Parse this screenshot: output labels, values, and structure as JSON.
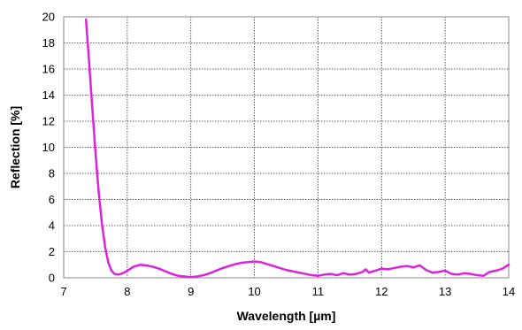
{
  "chart_data": {
    "type": "line",
    "title": "",
    "xlabel": "Wavelength [µm]",
    "ylabel": "Reflection [%]",
    "xlim": [
      7,
      14
    ],
    "ylim": [
      0,
      20
    ],
    "x_ticks": [
      "7",
      "8",
      "9",
      "10",
      "11",
      "12",
      "13",
      "14"
    ],
    "y_ticks": [
      "0",
      "2",
      "4",
      "6",
      "8",
      "10",
      "12",
      "14",
      "16",
      "18",
      "20"
    ],
    "grid": true,
    "legend": "none",
    "line_color": "#dd22dd",
    "series": [
      {
        "x": [
          7.35,
          7.4,
          7.45,
          7.5,
          7.55,
          7.6,
          7.65,
          7.7,
          7.75,
          7.8,
          7.85,
          7.9,
          7.95,
          8.0,
          8.1,
          8.2,
          8.3,
          8.4,
          8.5,
          8.6,
          8.7,
          8.8,
          8.9,
          9.0,
          9.1,
          9.2,
          9.3,
          9.4,
          9.5,
          9.6,
          9.7,
          9.8,
          9.9,
          10.0,
          10.1,
          10.2,
          10.3,
          10.4,
          10.5,
          10.6,
          10.7,
          10.8,
          10.9,
          11.0,
          11.1,
          11.2,
          11.3,
          11.4,
          11.5,
          11.6,
          11.7,
          11.75,
          11.8,
          11.9,
          12.0,
          12.1,
          12.2,
          12.3,
          12.4,
          12.5,
          12.6,
          12.7,
          12.8,
          12.9,
          13.0,
          13.1,
          13.2,
          13.3,
          13.4,
          13.5,
          13.6,
          13.7,
          13.8,
          13.9,
          14.0
        ],
        "y": [
          19.8,
          16.5,
          13.0,
          9.6,
          6.6,
          4.2,
          2.4,
          1.2,
          0.55,
          0.3,
          0.25,
          0.3,
          0.4,
          0.55,
          0.85,
          1.0,
          0.95,
          0.85,
          0.7,
          0.5,
          0.3,
          0.15,
          0.1,
          0.05,
          0.1,
          0.2,
          0.35,
          0.55,
          0.75,
          0.9,
          1.05,
          1.15,
          1.2,
          1.25,
          1.2,
          1.05,
          0.9,
          0.75,
          0.6,
          0.5,
          0.4,
          0.3,
          0.2,
          0.15,
          0.25,
          0.3,
          0.2,
          0.35,
          0.25,
          0.3,
          0.45,
          0.65,
          0.4,
          0.55,
          0.7,
          0.65,
          0.75,
          0.85,
          0.9,
          0.8,
          0.95,
          0.6,
          0.4,
          0.45,
          0.55,
          0.3,
          0.25,
          0.35,
          0.3,
          0.2,
          0.15,
          0.45,
          0.55,
          0.7,
          1.0
        ]
      }
    ]
  }
}
